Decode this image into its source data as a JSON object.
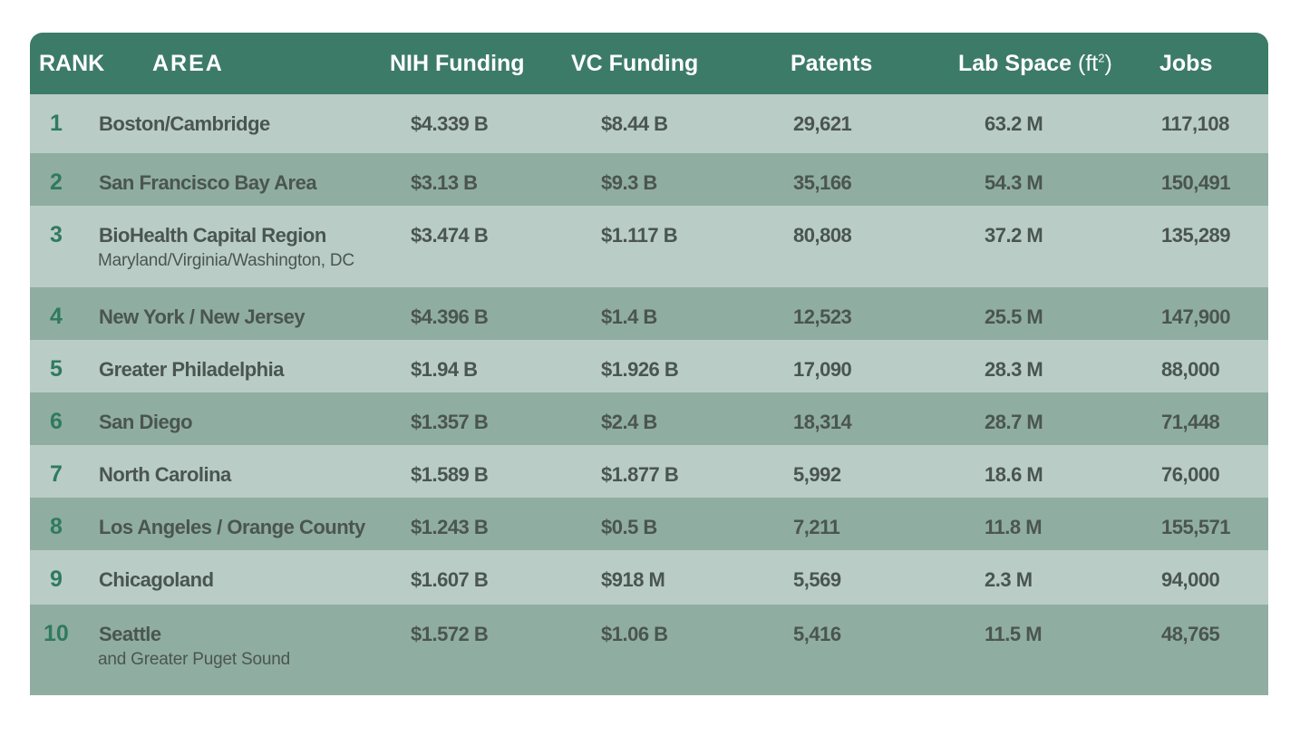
{
  "chart_data": {
    "type": "table",
    "columns": [
      "RANK",
      "AREA",
      "NIH Funding",
      "VC Funding",
      "Patents",
      "Lab Space",
      "Jobs"
    ],
    "lab_space_unit": "(ft",
    "lab_space_exp": "2",
    "lab_space_close": ")",
    "rows": [
      {
        "rank": "1",
        "area": "Boston/Cambridge",
        "sub": "",
        "nih": "$4.339 B",
        "vc": "$8.44 B",
        "patents": "29,621",
        "lab": "63.2 M",
        "jobs": "117,108"
      },
      {
        "rank": "2",
        "area": "San Francisco Bay Area",
        "sub": "",
        "nih": "$3.13 B",
        "vc": "$9.3 B",
        "patents": "35,166",
        "lab": "54.3 M",
        "jobs": "150,491"
      },
      {
        "rank": "3",
        "area": "BioHealth Capital Region",
        "sub": "Maryland/Virginia/Washington, DC",
        "nih": "$3.474 B",
        "vc": "$1.117 B",
        "patents": "80,808",
        "lab": "37.2 M",
        "jobs": "135,289"
      },
      {
        "rank": "4",
        "area": "New York / New Jersey",
        "sub": "",
        "nih": "$4.396 B",
        "vc": "$1.4 B",
        "patents": "12,523",
        "lab": "25.5 M",
        "jobs": "147,900"
      },
      {
        "rank": "5",
        "area": "Greater Philadelphia",
        "sub": "",
        "nih": "$1.94 B",
        "vc": "$1.926 B",
        "patents": "17,090",
        "lab": "28.3 M",
        "jobs": "88,000"
      },
      {
        "rank": "6",
        "area": "San Diego",
        "sub": "",
        "nih": "$1.357 B",
        "vc": "$2.4 B",
        "patents": "18,314",
        "lab": "28.7 M",
        "jobs": "71,448"
      },
      {
        "rank": "7",
        "area": "North Carolina",
        "sub": "",
        "nih": "$1.589 B",
        "vc": "$1.877 B",
        "patents": "5,992",
        "lab": "18.6 M",
        "jobs": "76,000"
      },
      {
        "rank": "8",
        "area": "Los Angeles / Orange County",
        "sub": "",
        "nih": "$1.243 B",
        "vc": "$0.5 B",
        "patents": "7,211",
        "lab": "11.8 M",
        "jobs": "155,571"
      },
      {
        "rank": "9",
        "area": "Chicagoland",
        "sub": "",
        "nih": "$1.607 B",
        "vc": "$918 M",
        "patents": "5,569",
        "lab": "2.3 M",
        "jobs": "94,000"
      },
      {
        "rank": "10",
        "area": "Seattle",
        "sub": "and Greater Puget Sound",
        "nih": "$1.572 B",
        "vc": "$1.06 B",
        "patents": "5,416",
        "lab": "11.5 M",
        "jobs": "48,765"
      }
    ]
  },
  "colors": {
    "header_bg": "#3c7b68",
    "row_light": "#b9ccc5",
    "row_dark": "#90ada1",
    "rank_text": "#2f7a62",
    "cell_text": "#4a5552"
  }
}
